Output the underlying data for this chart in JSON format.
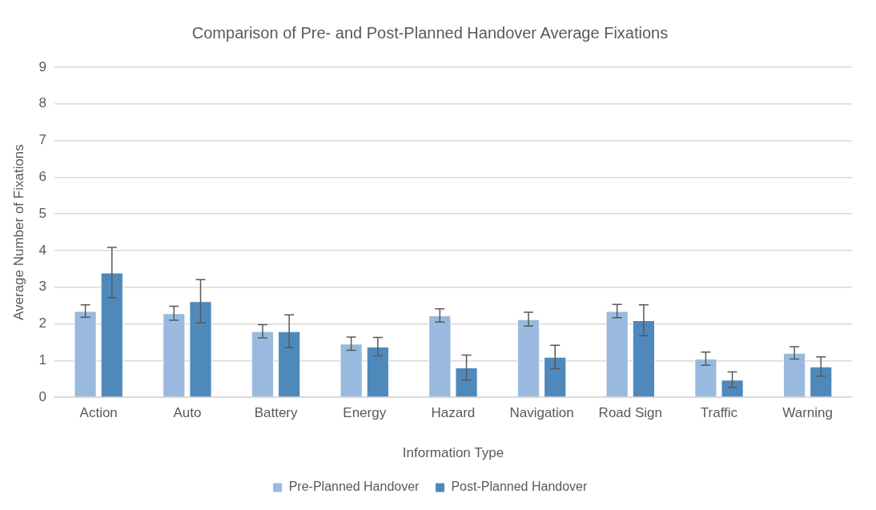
{
  "chart_data": {
    "type": "bar",
    "title": "Comparison of Pre- and Post-Planned Handover Average Fixations",
    "xlabel": "Information Type",
    "ylabel": "Average Number of Fixations",
    "categories": [
      "Action",
      "Auto",
      "Battery",
      "Energy",
      "Hazard",
      "Navigation",
      "Road Sign",
      "Traffic",
      "Warning"
    ],
    "series": [
      {
        "name": "Pre-Planned Handover",
        "color": "#9ab9df",
        "values": [
          2.35,
          2.29,
          1.8,
          1.46,
          2.23,
          2.13,
          2.35,
          1.05,
          1.21
        ],
        "errors": [
          0.17,
          0.19,
          0.18,
          0.18,
          0.18,
          0.19,
          0.18,
          0.18,
          0.17
        ]
      },
      {
        "name": "Post-Planned Handover",
        "color": "#4f89bc",
        "values": [
          3.4,
          2.62,
          1.8,
          1.38,
          0.81,
          1.1,
          2.1,
          0.48,
          0.84
        ],
        "errors": [
          0.69,
          0.59,
          0.45,
          0.25,
          0.34,
          0.32,
          0.42,
          0.21,
          0.26
        ]
      }
    ],
    "ylim": [
      0,
      9
    ],
    "yticks": [
      0,
      1,
      2,
      3,
      4,
      5,
      6,
      7,
      8,
      9
    ],
    "grid": "y",
    "legend": "bottom"
  }
}
